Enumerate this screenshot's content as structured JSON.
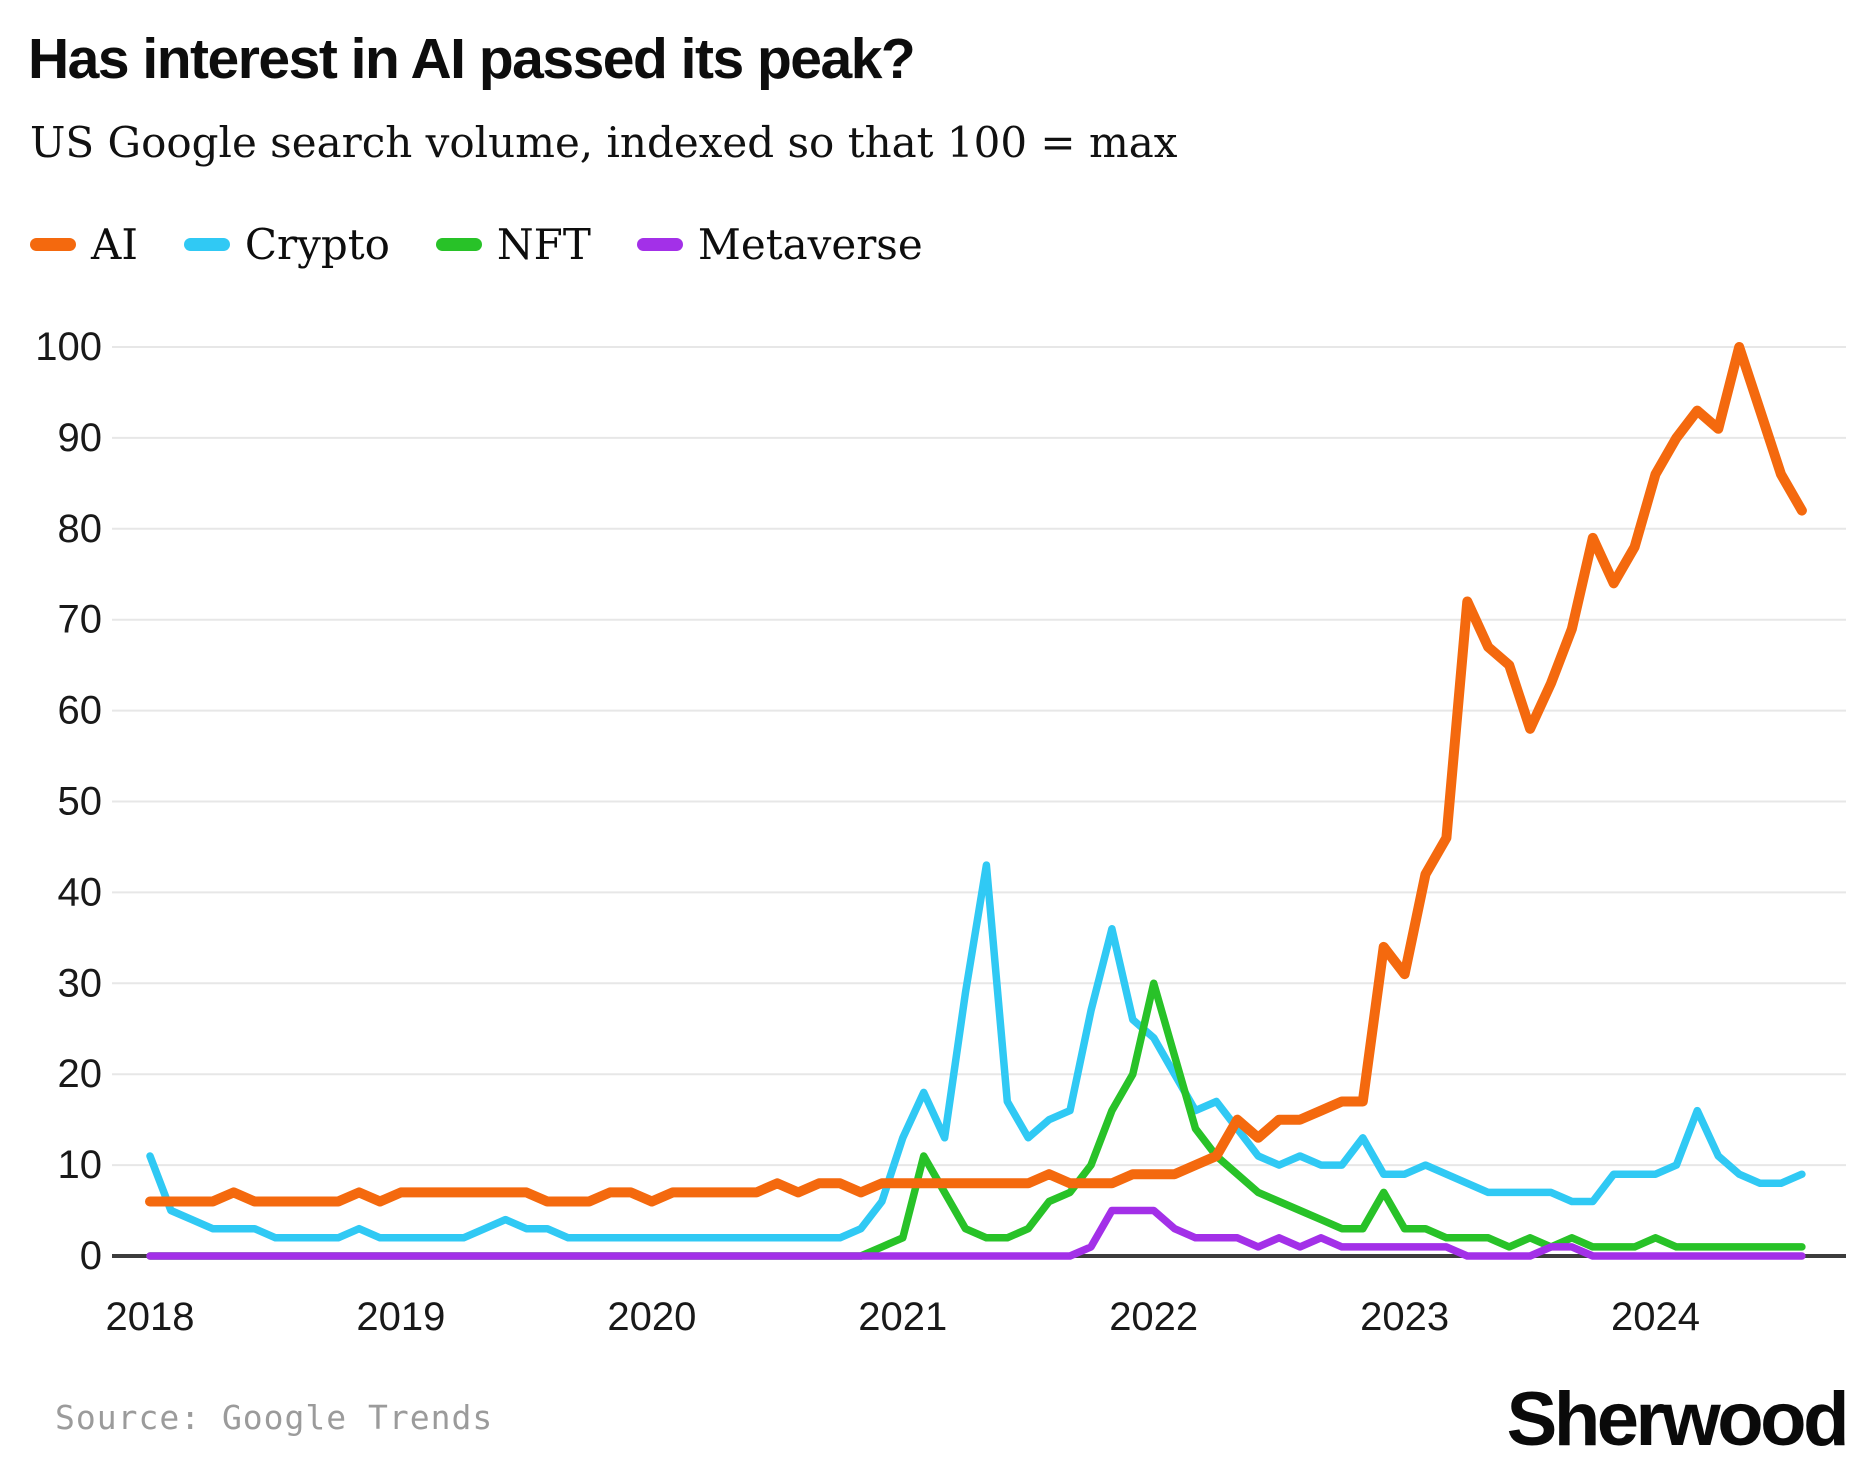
{
  "header": {
    "title": "Has interest in AI passed its peak?",
    "subtitle": "US Google search volume, indexed so that 100 = max"
  },
  "legend": [
    {
      "label": "AI",
      "color": "#f4690e"
    },
    {
      "label": "Crypto",
      "color": "#30c9f4"
    },
    {
      "label": "NFT",
      "color": "#28c228"
    },
    {
      "label": "Metaverse",
      "color": "#a330e8"
    }
  ],
  "chart_data": {
    "type": "line",
    "title": "Has interest in AI passed its peak?",
    "subtitle": "US Google search volume, indexed so that 100 = max",
    "xlabel": "",
    "ylabel": "",
    "x_start": "2018-01",
    "x_end": "2024-08",
    "frequency": "monthly",
    "x_tick_labels": [
      "2018",
      "2019",
      "2020",
      "2021",
      "2022",
      "2023",
      "2024"
    ],
    "y_ticks": [
      0,
      10,
      20,
      30,
      40,
      50,
      60,
      70,
      80,
      90,
      100
    ],
    "ylim": [
      0,
      100
    ],
    "grid": "horizontal",
    "legend_position": "top-left",
    "colors": {
      "grid": "#e7e7e7",
      "axis": "#3c3c3c",
      "tick_text": "#191919"
    },
    "series": [
      {
        "name": "AI",
        "color": "#f4690e",
        "values": [
          6,
          6,
          6,
          6,
          7,
          6,
          6,
          6,
          6,
          6,
          7,
          6,
          7,
          7,
          7,
          7,
          7,
          7,
          7,
          6,
          6,
          6,
          7,
          7,
          6,
          7,
          7,
          7,
          7,
          7,
          8,
          7,
          8,
          8,
          7,
          8,
          8,
          8,
          8,
          8,
          8,
          8,
          8,
          9,
          8,
          8,
          8,
          9,
          9,
          9,
          10,
          11,
          15,
          13,
          15,
          15,
          16,
          17,
          17,
          34,
          31,
          42,
          46,
          72,
          67,
          65,
          58,
          63,
          69,
          79,
          74,
          78,
          86,
          90,
          93,
          91,
          100,
          93,
          86,
          82
        ]
      },
      {
        "name": "Crypto",
        "color": "#30c9f4",
        "values": [
          11,
          5,
          4,
          3,
          3,
          3,
          2,
          2,
          2,
          2,
          3,
          2,
          2,
          2,
          2,
          2,
          3,
          4,
          3,
          3,
          2,
          2,
          2,
          2,
          2,
          2,
          2,
          2,
          2,
          2,
          2,
          2,
          2,
          2,
          3,
          6,
          13,
          18,
          13,
          29,
          43,
          17,
          13,
          15,
          16,
          27,
          36,
          26,
          24,
          20,
          16,
          17,
          14,
          11,
          10,
          11,
          10,
          10,
          13,
          9,
          9,
          10,
          9,
          8,
          7,
          7,
          7,
          7,
          6,
          6,
          9,
          9,
          9,
          10,
          16,
          11,
          9,
          8,
          8,
          9
        ]
      },
      {
        "name": "NFT",
        "color": "#28c228",
        "values": [
          0,
          0,
          0,
          0,
          0,
          0,
          0,
          0,
          0,
          0,
          0,
          0,
          0,
          0,
          0,
          0,
          0,
          0,
          0,
          0,
          0,
          0,
          0,
          0,
          0,
          0,
          0,
          0,
          0,
          0,
          0,
          0,
          0,
          0,
          0,
          1,
          2,
          11,
          7,
          3,
          2,
          2,
          3,
          6,
          7,
          10,
          16,
          20,
          30,
          22,
          14,
          11,
          9,
          7,
          6,
          5,
          4,
          3,
          3,
          7,
          3,
          3,
          2,
          2,
          2,
          1,
          2,
          1,
          2,
          1,
          1,
          1,
          2,
          1,
          1,
          1,
          1,
          1,
          1,
          1
        ]
      },
      {
        "name": "Metaverse",
        "color": "#a330e8",
        "values": [
          0,
          0,
          0,
          0,
          0,
          0,
          0,
          0,
          0,
          0,
          0,
          0,
          0,
          0,
          0,
          0,
          0,
          0,
          0,
          0,
          0,
          0,
          0,
          0,
          0,
          0,
          0,
          0,
          0,
          0,
          0,
          0,
          0,
          0,
          0,
          0,
          0,
          0,
          0,
          0,
          0,
          0,
          0,
          0,
          0,
          1,
          5,
          5,
          5,
          3,
          2,
          2,
          2,
          1,
          2,
          1,
          2,
          1,
          1,
          1,
          1,
          1,
          1,
          0,
          0,
          0,
          0,
          1,
          1,
          0,
          0,
          0,
          0,
          0,
          0,
          0,
          0,
          0,
          0,
          0
        ]
      }
    ]
  },
  "footer": {
    "source": "Source: Google Trends",
    "brand": "Sherwood"
  }
}
